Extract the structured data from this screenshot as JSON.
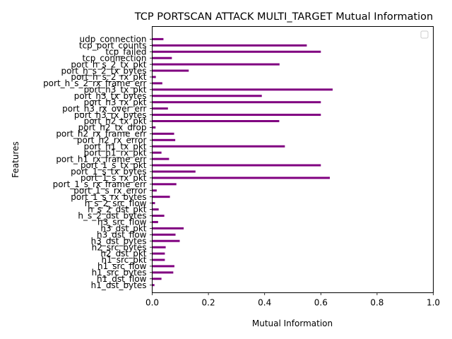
{
  "chart_data": {
    "type": "bar",
    "orientation": "horizontal",
    "title": "TCP PORTSCAN ATTACK MULTI_TARGET Mutual Information",
    "xlabel": "Mutual Information",
    "ylabel": "Features",
    "xlim": [
      0,
      1.0
    ],
    "xticks": [
      "0.0",
      "0.2",
      "0.4",
      "0.6",
      "0.8",
      "1.0"
    ],
    "bar_color": "#800080",
    "grid": false,
    "legend": "top-right (empty)",
    "categories": [
      "h1_dst_bytes",
      "h1_dst_flow",
      "h1_src_bytes",
      "h1_src_flow",
      "h1_src_pkt",
      "h2_dst_pkt",
      "h2_src_bytes",
      "h3_dst_bytes",
      "h3_dst_flow",
      "h3_dst_pkt",
      "h3_src_flow",
      "h_s_2_dst_bytes",
      "h_s_2_dst_pkt",
      "h_s_2_src_flow",
      "port_1_s_rx_bytes",
      "port_1_s_rx_error",
      "port_1_s_rx_frame_err",
      "port_1_s_rx_pkt",
      "port_1_s_tx_bytes",
      "port_1_s_tx_pkt",
      "port_h1_rx_frame_err",
      "port_h1_rx_pkt",
      "port_h1_tx_pkt",
      "port_h2_rx_error",
      "port_h2_rx_frame_err",
      "port_h2_tx_drop",
      "port_h2_tx_pkt",
      "port_h3_rx_bytes",
      "port_h3_rx_over_err",
      "port_h3_rx_pkt",
      "port_h3_tx_bytes",
      "port_h3_tx_pkt",
      "port_h_s_2_rx_frame_err",
      "port_h_s_2_rx_pkt",
      "port_h_s_2_tx_bytes",
      "port_h_s_2_tx_pkt",
      "tcp_connection",
      "tcp_failed",
      "tcp_port_counts",
      "udp_connection"
    ],
    "values": [
      0.008,
      0.033,
      0.075,
      0.079,
      0.045,
      0.045,
      0.048,
      0.098,
      0.083,
      0.112,
      0.021,
      0.043,
      0.023,
      0.01,
      0.063,
      0.016,
      0.086,
      0.632,
      0.154,
      0.6,
      0.06,
      0.033,
      0.472,
      0.082,
      0.078,
      0.012,
      0.452,
      0.6,
      0.056,
      0.6,
      0.39,
      0.642,
      0.036,
      0.013,
      0.13,
      0.453,
      0.07,
      0.6,
      0.55,
      0.04
    ]
  }
}
